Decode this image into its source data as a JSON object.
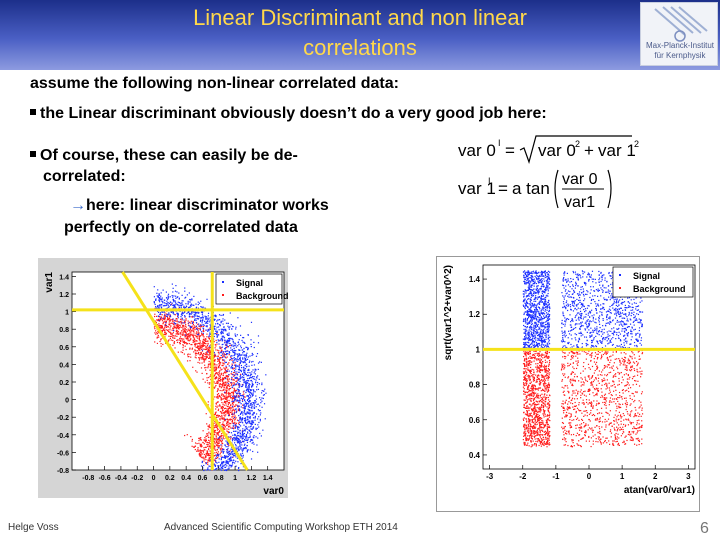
{
  "slide": {
    "title_line1": "Linear Discriminant and non linear",
    "title_line2": "correlations",
    "logo_text_line1": "Max-Planck-Institut",
    "logo_text_line2": "für Kernphysik",
    "intro": "assume the following non-linear correlated data:",
    "bullet1": "the Linear discriminant obviously doesn’t do a very good job here:",
    "bullet2_line1": "Of course, these can easily be de-",
    "bullet2_line2": "correlated:",
    "arrow_glyph": "→",
    "arrow_line1": "here: linear discriminator works",
    "arrow_line2": "perfectly on de-correlated data",
    "footer_author": "Helge Voss",
    "footer_event": "Advanced Scientific Computing Workshop ETH 2014",
    "page_number": "6"
  },
  "formula1": {
    "lhs": "var 0",
    "prime": "I",
    "eq": "=",
    "term1": "var 0",
    "term2": "var 1",
    "sq": "2",
    "plus": "+"
  },
  "formula2": {
    "lhs": "var 1",
    "prime": "I",
    "eq": "=",
    "fn": "a tan",
    "num": "var 0",
    "den": "var1"
  },
  "colors": {
    "title_text": "#ffd84a",
    "title_bg": "#2a3da0",
    "signal": "#1a2eff",
    "background": "#ff1a1a",
    "cut_line": "#f5e21a"
  },
  "chart_data": [
    {
      "type": "scatter",
      "title": "",
      "xlabel": "var0",
      "ylabel": "var1",
      "xlim": [
        -1,
        1.6
      ],
      "ylim": [
        -0.8,
        1.45
      ],
      "x_ticks": [
        "-0.8",
        "-0.6",
        "-0.4",
        "-0.2",
        "0",
        "0.2",
        "0.4",
        "0.6",
        "0.8",
        "1",
        "1.2",
        "1.4"
      ],
      "y_ticks": [
        "-0.8",
        "-0.6",
        "-0.4",
        "-0.2",
        "0",
        "0.2",
        "0.4",
        "0.6",
        "0.8",
        "1",
        "1.2",
        "1.4"
      ],
      "x_tick_values": [
        -0.8,
        -0.6,
        -0.4,
        -0.2,
        0,
        0.2,
        0.4,
        0.6,
        0.8,
        1,
        1.2,
        1.4
      ],
      "y_tick_values": [
        -0.8,
        -0.6,
        -0.4,
        -0.2,
        0,
        0.2,
        0.4,
        0.6,
        0.8,
        1,
        1.2,
        1.4
      ],
      "legend": {
        "placement": "top-right",
        "entries": [
          "Signal",
          "Background"
        ]
      },
      "series": [
        {
          "name": "Signal",
          "shape": "arc",
          "center": [
            0,
            0
          ],
          "radius": 1.1,
          "spread": 0.09,
          "angle_range": [
            -55,
            90
          ],
          "n": 1800
        },
        {
          "name": "Background",
          "shape": "arc",
          "center": [
            0,
            0
          ],
          "radius": 0.85,
          "spread": 0.09,
          "angle_range": [
            -50,
            90
          ],
          "n": 1800
        }
      ],
      "cut_lines": [
        {
          "from": [
            -1,
            1.02
          ],
          "to": [
            1.6,
            1.02
          ]
        },
        {
          "from": [
            0.72,
            -0.8
          ],
          "to": [
            0.72,
            1.45
          ]
        },
        {
          "from": [
            -0.38,
            1.45
          ],
          "to": [
            1.15,
            -0.8
          ]
        }
      ]
    },
    {
      "type": "scatter",
      "title": "",
      "xlabel": "atan(var0/var1)",
      "ylabel": "sqrt(var1^2+var0^2)",
      "xlim": [
        -3.2,
        3.2
      ],
      "ylim": [
        0.32,
        1.48
      ],
      "x_ticks": [
        "-3",
        "-2",
        "-1",
        "0",
        "1",
        "2",
        "3"
      ],
      "y_ticks": [
        "0.4",
        "0.6",
        "0.8",
        "1",
        "1.2",
        "1.4"
      ],
      "x_tick_values": [
        -3,
        -2,
        -1,
        0,
        1,
        2,
        3
      ],
      "y_tick_values": [
        0.4,
        0.6,
        0.8,
        1,
        1.2,
        1.4
      ],
      "legend": {
        "placement": "top-right",
        "entries": [
          "Signal",
          "Background"
        ]
      },
      "series": [
        {
          "name": "Signal",
          "shape": "band",
          "x_ranges": [
            [
              -2.0,
              -1.2
            ],
            [
              -0.85,
              1.6
            ]
          ],
          "y_range": [
            1.0,
            1.45
          ],
          "n": 2000
        },
        {
          "name": "Background",
          "shape": "band",
          "x_ranges": [
            [
              -2.0,
              -1.2
            ],
            [
              -0.85,
              1.6
            ]
          ],
          "y_range": [
            0.45,
            1.0
          ],
          "n": 2000
        }
      ],
      "cut_lines": [
        {
          "from": [
            -3.2,
            1.0
          ],
          "to": [
            3.2,
            1.0
          ]
        }
      ]
    }
  ]
}
